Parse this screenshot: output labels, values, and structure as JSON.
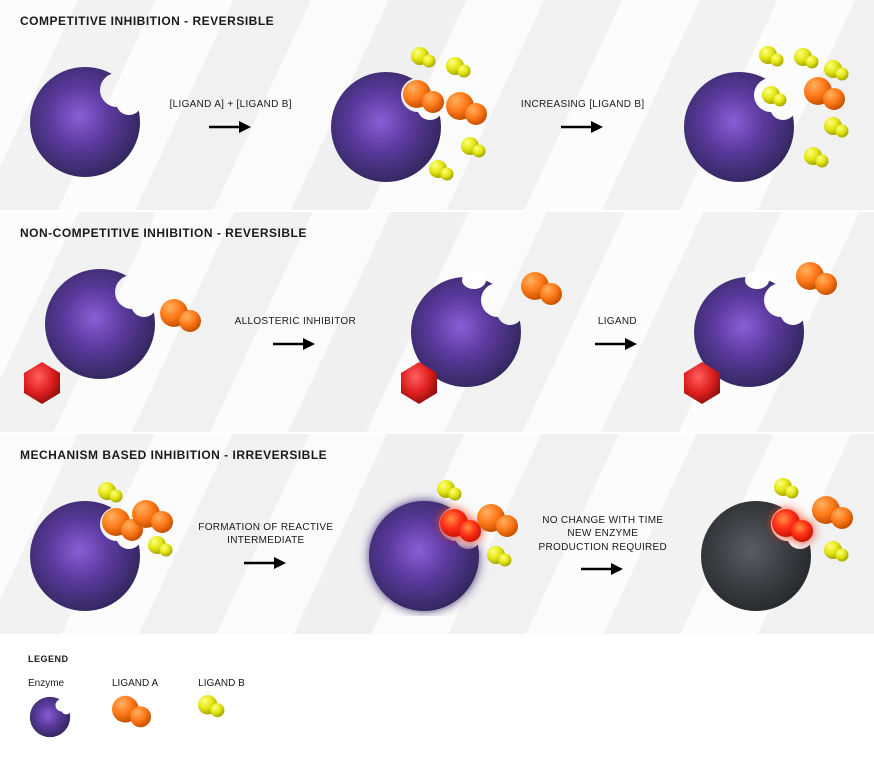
{
  "colors": {
    "enzyme_outer": "#3a2d6d",
    "enzyme_mid": "#5b3a9e",
    "enzyme_inner": "#7d4fc9",
    "enzyme_dark": "#2a2440",
    "enzyme_dead": "#4a4d52",
    "enzyme_dead_dark": "#2d3034",
    "ligandA": "#ff7a1a",
    "ligandA_dark": "#d85800",
    "ligandB": "#e4e614",
    "ligandB_dark": "#b8b800",
    "hexagon": "#e02020",
    "hexagon_dark": "#a01010",
    "reactive": "#ff1020",
    "text": "#1a1a1a",
    "arrow": "#000000",
    "white": "#ffffff",
    "glow": "#ff4080"
  },
  "panels": [
    {
      "title": "COMPETITIVE INHIBITION - REVERSIBLE",
      "step1_label": "[LIGAND A] + [LIGAND B]",
      "step2_label": "INCREASING [LIGAND B]"
    },
    {
      "title": "NON-COMPETITIVE INHIBITION - REVERSIBLE",
      "step1_label": "ALLOSTERIC INHIBITOR",
      "step2_label": "LIGAND"
    },
    {
      "title": "MECHANISM BASED INHIBITION - IRREVERSIBLE",
      "step1_label": "FORMATION OF REACTIVE INTERMEDIATE",
      "step2_label": "NO CHANGE WITH TIME\nNEW ENZYME PRODUCTION REQUIRED"
    }
  ],
  "legend": {
    "title": "LEGEND",
    "items": [
      {
        "label": "Enzyme"
      },
      {
        "label": "LIGAND A"
      },
      {
        "label": "LIGAND B"
      }
    ]
  },
  "sizes": {
    "enzyme_r": 55,
    "ligandA_scale": 1.0,
    "ligandB_scale": 0.65,
    "arrow_w": 40,
    "arrow_h": 18
  }
}
